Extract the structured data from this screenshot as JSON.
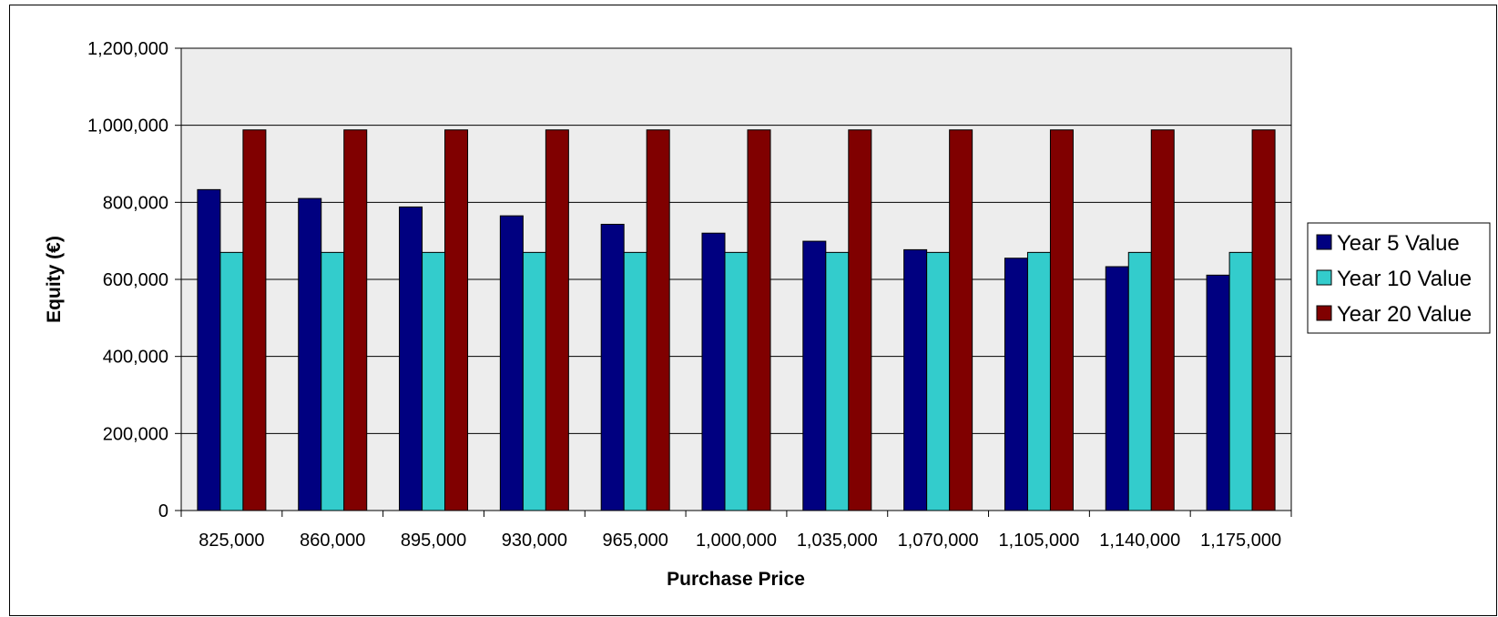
{
  "chart_data": {
    "type": "bar",
    "title": "",
    "xlabel": "Purchase Price",
    "ylabel": "Equity (€)",
    "categories": [
      "825,000",
      "860,000",
      "895,000",
      "930,000",
      "965,000",
      "1,000,000",
      "1,035,000",
      "1,070,000",
      "1,105,000",
      "1,140,000",
      "1,175,000"
    ],
    "series": [
      {
        "name": "Year 5 Value",
        "color": "#000080",
        "values": [
          833000,
          810000,
          788000,
          765000,
          743000,
          720000,
          699000,
          677000,
          655000,
          633000,
          611000
        ]
      },
      {
        "name": "Year 10 Value",
        "color": "#33CCCC",
        "values": [
          670000,
          670000,
          670000,
          670000,
          670000,
          670000,
          670000,
          670000,
          670000,
          670000,
          670000
        ]
      },
      {
        "name": "Year 20 Value",
        "color": "#800000",
        "values": [
          988000,
          988000,
          988000,
          988000,
          988000,
          988000,
          988000,
          988000,
          988000,
          988000,
          988000
        ]
      }
    ],
    "ylim": [
      0,
      1200000
    ],
    "yticks": [
      "0",
      "200,000",
      "400,000",
      "600,000",
      "800,000",
      "1,000,000",
      "1,200,000"
    ],
    "ytick_values": [
      0,
      200000,
      400000,
      600000,
      800000,
      1000000,
      1200000
    ],
    "grid": true,
    "plot_background": "#EDEDED",
    "legend_position": "right"
  }
}
